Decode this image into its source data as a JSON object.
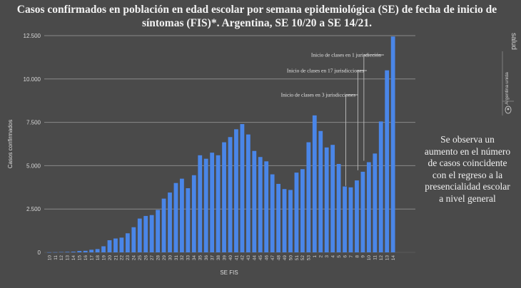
{
  "colors": {
    "background": "#4a4a4a",
    "bar": "#4a86e8",
    "gridline": "#8a8a8a",
    "annotation_line": "#bdbdbd"
  },
  "title": {
    "line1": "Casos confirmados en población en edad escolar por semana epidemiológica (SE) de fecha de inicio de",
    "line2": "síntomas (FIS)*. Argentina, SE 10/20 a SE 14/21."
  },
  "note": {
    "lines": [
      "Se observa un",
      "aumento en el número",
      "de casos coincidente",
      "con el regreso a la",
      "presencialidad escolar",
      "a nivel general"
    ]
  },
  "logo": {
    "text_top": "salud",
    "text_mid": "Argentina unida",
    "icon": "argentina-seal-icon"
  },
  "chart_data": {
    "type": "bar",
    "title": "Casos confirmados en población en edad escolar por semana epidemiológica (SE) de fecha de inicio de síntomas (FIS)*. Argentina, SE 10/20 a SE 14/21.",
    "xlabel": "SE FIS",
    "ylabel": "Casos confirmados",
    "ylim": [
      0,
      12500
    ],
    "yticks": [
      0,
      2500,
      5000,
      7500,
      10000,
      12500
    ],
    "ytick_labels": [
      "0",
      "2.500",
      "5.000",
      "7.500",
      "10.000",
      "12.500"
    ],
    "grid": true,
    "categories": [
      "10",
      "11",
      "12",
      "13",
      "14",
      "15",
      "16",
      "17",
      "18",
      "19",
      "20",
      "21",
      "22",
      "23",
      "24",
      "25",
      "26",
      "27",
      "28",
      "29",
      "30",
      "31",
      "32",
      "33",
      "34",
      "35",
      "36",
      "37",
      "38",
      "39",
      "40",
      "41",
      "42",
      "43",
      "44",
      "45",
      "46",
      "47",
      "48",
      "49",
      "50",
      "51",
      "52",
      "53",
      "1",
      "2",
      "3",
      "4",
      "5",
      "6",
      "7",
      "8",
      "9",
      "10",
      "11",
      "12",
      "13",
      "14"
    ],
    "values": [
      5,
      10,
      20,
      30,
      40,
      80,
      90,
      150,
      190,
      350,
      700,
      800,
      850,
      1100,
      1450,
      1950,
      2100,
      2150,
      2450,
      3100,
      3450,
      4000,
      4250,
      3700,
      4450,
      5600,
      5400,
      5750,
      5600,
      6350,
      6650,
      7100,
      7400,
      6800,
      5850,
      5500,
      5250,
      4500,
      3950,
      3650,
      3600,
      4600,
      4800,
      6350,
      7900,
      7000,
      6050,
      6200,
      5100,
      3800,
      3750,
      4150,
      4650,
      5200,
      5700,
      7550,
      10500,
      12450
    ],
    "annotations": [
      {
        "text": "Inicio de clases en 1 jurisdicción",
        "category_index": 53
      },
      {
        "text": "Inicio de clases en 17 jurisdicciones",
        "category_index": 52
      },
      {
        "text": "Inicio de clases en 3 jurisdicciones",
        "category_index": 50
      }
    ]
  }
}
